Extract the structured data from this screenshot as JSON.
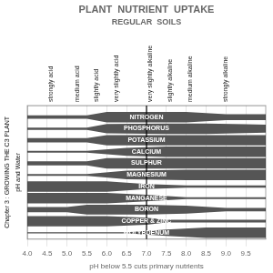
{
  "chart_data": {
    "type": "band",
    "title": "PLANT  NUTRIENT  UPTAKE",
    "subtitle": "REGULAR  SOILS",
    "xlabel": "pH below 5.5 cuts primary nutrients",
    "annotations": [
      {
        "text": "strongly acid",
        "x": 4.6
      },
      {
        "text": "medium acid",
        "x": 5.25
      },
      {
        "text": "slightly acid",
        "x": 5.75
      },
      {
        "text": "very slightly acid",
        "x": 6.25
      },
      {
        "text": "very slightly alkaline",
        "x": 7.1
      },
      {
        "text": "slightly alkaline",
        "x": 7.6
      },
      {
        "text": "medium alkaline",
        "x": 8.1
      },
      {
        "text": "strongly alkaline",
        "x": 9.0
      },
      {
        "text": "Chapter 3 : GROWING THE C3 PLANT"
      },
      {
        "text": "pH and Water"
      }
    ],
    "divider": 7.0,
    "series": [
      {
        "name": "NITROGEN",
        "color": "#555555",
        "x": [
          4.0,
          5.5,
          6.0,
          8.0,
          9.0,
          10.0
        ],
        "values": [
          0.15,
          0.15,
          0.45,
          0.45,
          0.25,
          0.25
        ]
      },
      {
        "name": "PHOSPHORUS",
        "color": "#555555",
        "x": [
          4.0,
          5.5,
          6.0,
          7.5,
          8.5,
          9.5,
          10.0
        ],
        "values": [
          0.1,
          0.1,
          0.4,
          0.45,
          0.45,
          0.38,
          0.35
        ]
      },
      {
        "name": "POTASSIUM",
        "color": "#555555",
        "x": [
          4.0,
          5.5,
          6.0,
          10.0
        ],
        "values": [
          0.18,
          0.18,
          0.45,
          0.45
        ]
      },
      {
        "name": "CALCIUM",
        "color": "#555555",
        "x": [
          4.0,
          5.5,
          6.5,
          7.5,
          10.0
        ],
        "values": [
          0.08,
          0.08,
          0.35,
          0.45,
          0.45
        ]
      },
      {
        "name": "SULPHUR",
        "color": "#555555",
        "x": [
          4.0,
          5.5,
          6.0,
          10.0
        ],
        "values": [
          0.18,
          0.18,
          0.45,
          0.45
        ]
      },
      {
        "name": "MAGNESIUM",
        "color": "#555555",
        "x": [
          4.0,
          5.5,
          6.5,
          8.0,
          10.0
        ],
        "values": [
          0.08,
          0.08,
          0.38,
          0.45,
          0.45
        ]
      },
      {
        "name": "IRON",
        "color": "#555555",
        "x": [
          4.0,
          6.0,
          7.0,
          8.0,
          10.0
        ],
        "values": [
          0.45,
          0.45,
          0.22,
          0.1,
          0.1
        ]
      },
      {
        "name": "MANGANESE",
        "color": "#555555",
        "x": [
          4.0,
          6.0,
          7.0,
          8.0,
          10.0
        ],
        "values": [
          0.45,
          0.45,
          0.28,
          0.08,
          0.08
        ]
      },
      {
        "name": "BORON",
        "color": "#555555",
        "x": [
          4.0,
          5.0,
          5.5,
          7.0,
          8.0,
          9.0,
          10.0
        ],
        "values": [
          0.22,
          0.22,
          0.42,
          0.42,
          0.35,
          0.15,
          0.15
        ]
      },
      {
        "name": "COPPER & ZINC",
        "color": "#555555",
        "x": [
          4.0,
          6.0,
          7.0,
          7.5,
          10.0
        ],
        "values": [
          0.45,
          0.45,
          0.3,
          0.12,
          0.12
        ]
      },
      {
        "name": "MOLYBDENUM",
        "color": "#555555",
        "x": [
          4.0,
          6.5,
          7.5,
          8.5,
          10.0
        ],
        "values": [
          0.05,
          0.05,
          0.28,
          0.45,
          0.45
        ]
      }
    ],
    "xlim": [
      4.0,
      10.0
    ],
    "xticks": [
      {
        "value": 4.0,
        "label": "4.0"
      },
      4.5,
      {
        "value": 5.0,
        "label": "5.0"
      },
      5.5,
      {
        "value": 6.0,
        "label": "6.0"
      },
      6.5,
      {
        "value": 7.0,
        "label": "7.0"
      },
      7.5,
      {
        "value": 8.0,
        "label": "8.0"
      },
      8.5,
      {
        "value": 9.0,
        "label": "9.0"
      },
      9.5
    ],
    "ylim": [
      -0.55,
      11
    ],
    "grid": true,
    "tick_labels": "x"
  }
}
